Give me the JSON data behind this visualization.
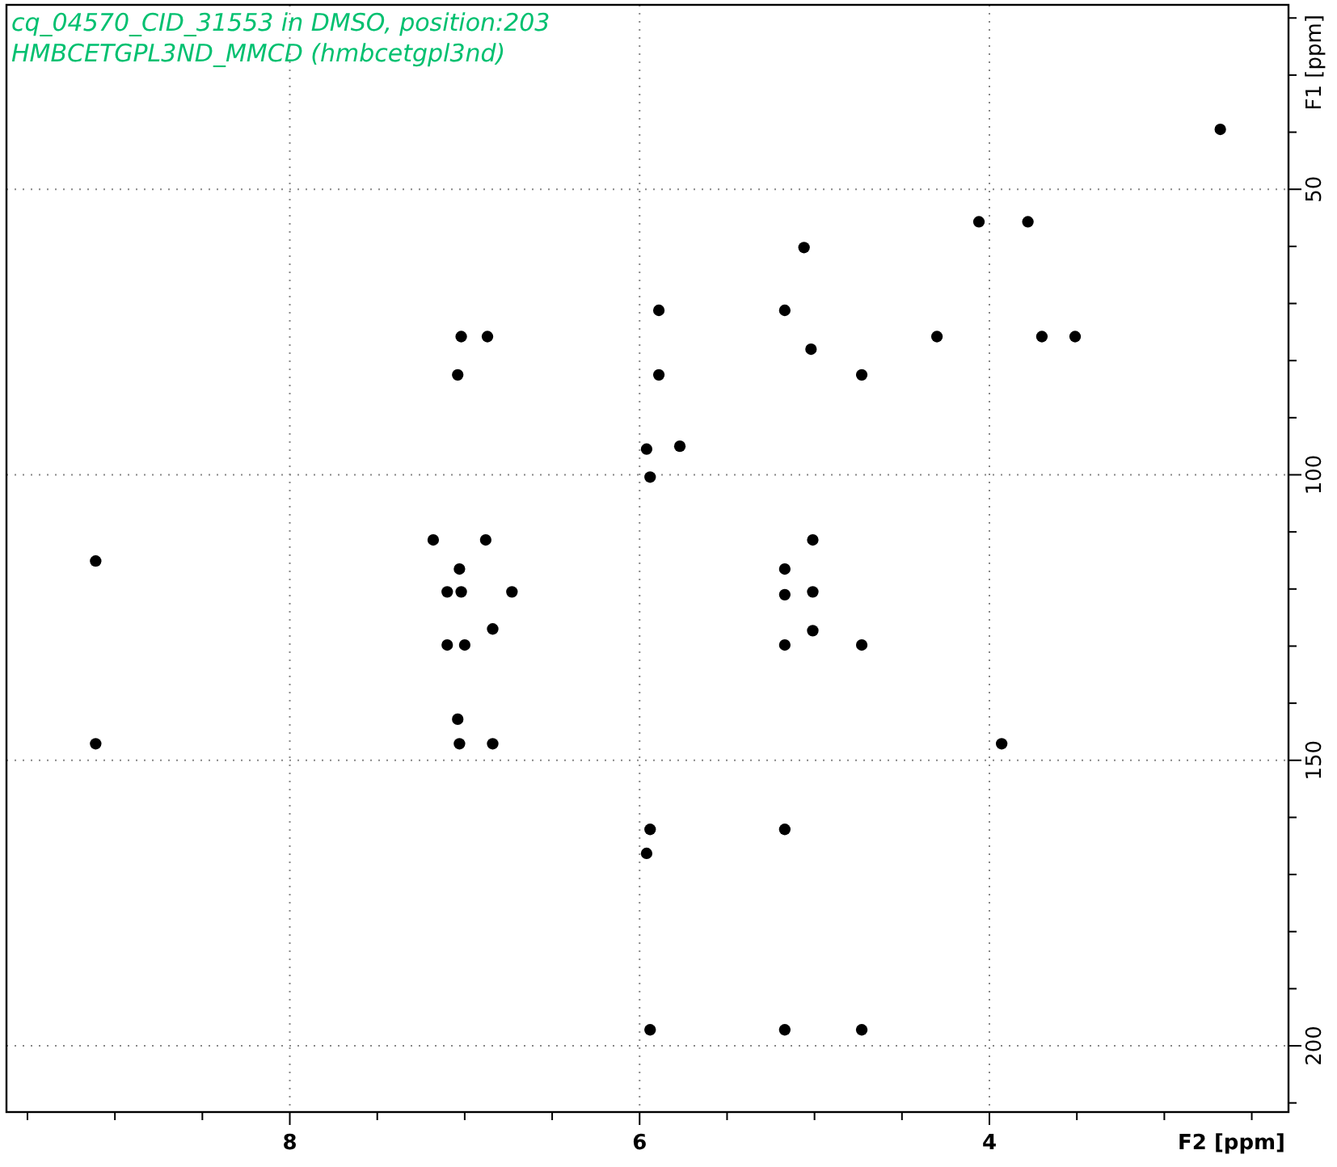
{
  "chart_data": {
    "type": "scatter",
    "title": "cq_04570_CID_31553 in DMSO, position:203",
    "subtitle": "HMBCETGPL3ND_MMCD (hmbcetgpl3nd)",
    "xlabel": "F2 [ppm]",
    "ylabel": "F1 [ppm]",
    "xlim": [
      9.62,
      2.29
    ],
    "ylim": [
      211.6,
      17.7
    ],
    "xticks": [
      {
        "value": 9.5,
        "label": null
      },
      {
        "value": 9,
        "label": null
      },
      {
        "value": 8.5,
        "label": null
      },
      8,
      {
        "value": 7.5,
        "label": null
      },
      {
        "value": 7,
        "label": null
      },
      {
        "value": 6.5,
        "label": null
      },
      6,
      {
        "value": 5.5,
        "label": null
      },
      {
        "value": 5,
        "label": null
      },
      {
        "value": 4.5,
        "label": null
      },
      4,
      {
        "value": 3.5,
        "label": null
      },
      {
        "value": 3,
        "label": null
      },
      {
        "value": 2.5,
        "label": null
      }
    ],
    "yticks": [
      {
        "value": 20,
        "label": null
      },
      {
        "value": 30,
        "label": null
      },
      {
        "value": 40,
        "label": null
      },
      50,
      {
        "value": 60,
        "label": null
      },
      {
        "value": 70,
        "label": null
      },
      {
        "value": 80,
        "label": null
      },
      {
        "value": 90,
        "label": null
      },
      100,
      {
        "value": 110,
        "label": null
      },
      {
        "value": 120,
        "label": null
      },
      {
        "value": 130,
        "label": null
      },
      {
        "value": 140,
        "label": null
      },
      150,
      {
        "value": 160,
        "label": null
      },
      {
        "value": 170,
        "label": null
      },
      {
        "value": 180,
        "label": null
      },
      {
        "value": 190,
        "label": null
      },
      200,
      {
        "value": 210,
        "label": null
      }
    ],
    "grid": true,
    "marker": "circle",
    "series": [
      {
        "color": "#000000",
        "x": [
          2.68,
          4.06,
          3.78,
          5.06,
          5.89,
          5.17,
          7.02,
          6.87,
          5.02,
          4.3,
          3.7,
          3.51,
          7.04,
          5.89,
          4.73,
          5.96,
          5.77,
          5.94,
          5.01,
          6.88,
          7.18,
          9.11,
          7.03,
          5.17,
          5.01,
          5.17,
          7.1,
          7.02,
          6.73,
          6.84,
          5.01,
          7.0,
          7.1,
          5.17,
          4.73,
          7.04,
          9.11,
          7.03,
          6.84,
          3.93,
          5.94,
          5.17,
          5.96,
          5.94,
          5.17,
          4.73
        ],
        "values": [
          39.5,
          55.7,
          55.7,
          60.2,
          71.2,
          71.2,
          75.8,
          75.8,
          78,
          75.8,
          75.8,
          75.8,
          82.5,
          82.5,
          82.5,
          95.5,
          95,
          100.4,
          111.4,
          111.4,
          111.4,
          115.1,
          116.5,
          116.5,
          120.5,
          121,
          120.5,
          120.5,
          120.5,
          127,
          127.3,
          129.8,
          129.8,
          129.8,
          129.8,
          142.8,
          147.1,
          147.1,
          147.1,
          147.1,
          162.1,
          162.1,
          166.3,
          197.2,
          197.2,
          197.2
        ]
      }
    ]
  }
}
